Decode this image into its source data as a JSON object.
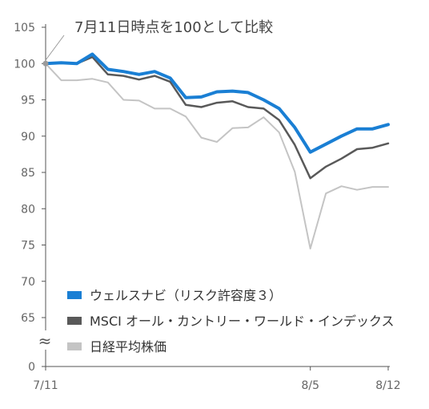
{
  "chart_data": {
    "type": "line",
    "annotation": "7月11日時点を100として比較",
    "x": [
      "7/11",
      "7/12",
      "7/15",
      "7/16",
      "7/17",
      "7/18",
      "7/19",
      "7/22",
      "7/23",
      "7/24",
      "7/25",
      "7/26",
      "7/29",
      "7/30",
      "7/31",
      "8/1",
      "8/2",
      "8/5",
      "8/6",
      "8/7",
      "8/8",
      "8/9",
      "8/12"
    ],
    "x_tick_labels": [
      "7/11",
      "8/5",
      "8/12"
    ],
    "y_ticks": [
      0,
      65,
      70,
      75,
      80,
      85,
      90,
      95,
      100,
      105
    ],
    "y_axis_break": "≈",
    "ylim": [
      0,
      105
    ],
    "grid": false,
    "legend_placement": "bottom-left inside",
    "series": [
      {
        "name": "ウェルスナビ（リスク許容度３）",
        "color": "#1a7fd4",
        "values": [
          100,
          100.1,
          100.0,
          101.3,
          99.2,
          98.9,
          98.5,
          98.9,
          98.0,
          95.3,
          95.4,
          96.1,
          96.2,
          96.0,
          95.0,
          93.8,
          91.2,
          87.8,
          88.9,
          90.0,
          91.0,
          91.0,
          91.6
        ]
      },
      {
        "name": "MSCI オール・カントリー・ワールド・インデックス",
        "color": "#595959",
        "values": [
          100,
          100.1,
          100.0,
          100.9,
          98.5,
          98.3,
          97.8,
          98.3,
          97.5,
          94.3,
          94.0,
          94.6,
          94.8,
          94.0,
          93.8,
          92.2,
          88.8,
          84.2,
          85.8,
          86.9,
          88.2,
          88.4,
          89.0
        ]
      },
      {
        "name": "日経平均株価",
        "color": "#c4c4c4",
        "values": [
          100,
          97.7,
          97.7,
          97.9,
          97.4,
          95.0,
          94.9,
          93.8,
          93.8,
          92.7,
          89.8,
          89.2,
          91.1,
          91.2,
          92.6,
          90.5,
          85.1,
          74.5,
          82.1,
          83.1,
          82.6,
          83.0,
          83.0
        ]
      }
    ]
  }
}
